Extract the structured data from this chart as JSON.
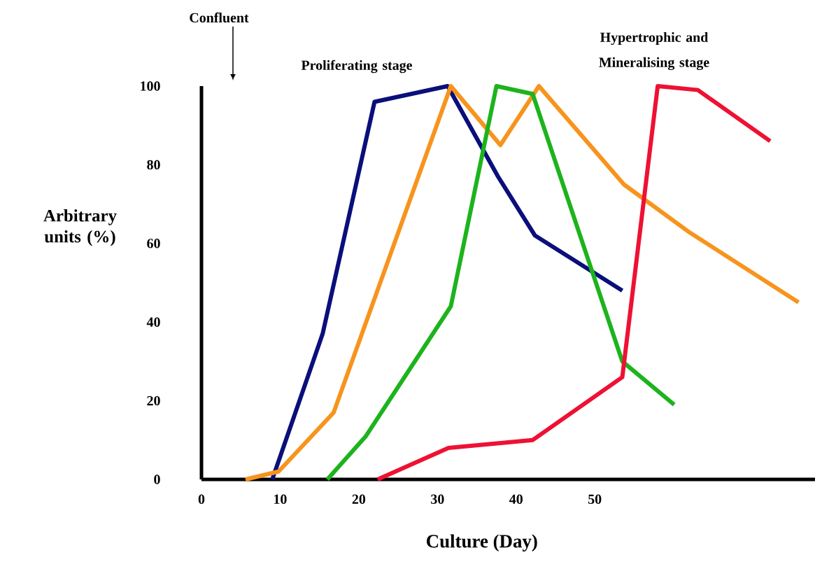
{
  "chart_data": {
    "type": "line",
    "xlabel": "Culture (Day)",
    "ylabel": "Arbitrary units (%)",
    "annotations": [
      "Confluent",
      "Proliferating stage",
      "Hypertrophic and Mineralising stage"
    ],
    "xlim": [
      0,
      78
    ],
    "ylim": [
      0,
      100
    ],
    "xticks": [
      0,
      10,
      20,
      30,
      40,
      50
    ],
    "yticks": [
      0,
      20,
      40,
      60,
      80,
      100
    ],
    "series": [
      {
        "color": "#0a0f7a",
        "x": [
          9,
          15.4,
          22,
          31.3,
          37.7,
          42.4,
          53.5
        ],
        "values": [
          0,
          37,
          96,
          100,
          77,
          62,
          48
        ]
      },
      {
        "color": "#f7941d",
        "x": [
          5.6,
          9.8,
          16.8,
          31.7,
          38,
          42.9,
          53.7,
          61.9,
          75.9
        ],
        "values": [
          0,
          2,
          17,
          100,
          85,
          100,
          75,
          63,
          45
        ]
      },
      {
        "color": "#1db31d",
        "x": [
          16,
          20.9,
          31.7,
          37.5,
          42.1,
          53.5,
          60.1
        ],
        "values": [
          0,
          11,
          44,
          100,
          98,
          30,
          19
        ]
      },
      {
        "color": "#ee1133",
        "x": [
          22.4,
          31.4,
          42.1,
          53.5,
          58,
          63.1,
          72.3
        ],
        "values": [
          0,
          8,
          10,
          26,
          100,
          99,
          86
        ]
      }
    ]
  }
}
